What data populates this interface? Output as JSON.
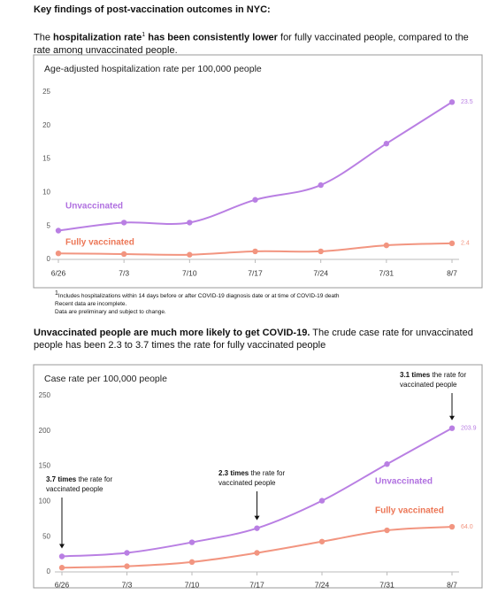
{
  "header": {
    "title": "Key findings of post-vaccination outcomes in NYC:"
  },
  "section1": {
    "parts": [
      "The ",
      "hospitalization rate",
      "1",
      " has been consistently lower",
      " for fully vaccinated people, compared to the rate among unvaccinated people."
    ]
  },
  "chart_data": [
    {
      "type": "line",
      "title": "Age-adjusted hospitalization rate per 100,000 people",
      "categories": [
        "6/26",
        "7/3",
        "7/10",
        "7/17",
        "7/24",
        "7/31",
        "8/7"
      ],
      "ylim": [
        0,
        25
      ],
      "yticks": [
        0,
        5,
        10,
        15,
        20,
        25
      ],
      "grid": false,
      "series": [
        {
          "name": "Unvaccinated",
          "color": "#b97fe3",
          "values": [
            4.3,
            5.5,
            5.5,
            8.9,
            11.1,
            17.3,
            23.5
          ],
          "value_labels": [
            null,
            null,
            null,
            null,
            null,
            null,
            "23.5"
          ]
        },
        {
          "name": "Fully vaccinated",
          "color": "#f29580",
          "values": [
            0.9,
            0.8,
            0.7,
            1.2,
            1.2,
            2.1,
            2.4
          ],
          "value_labels": [
            null,
            null,
            null,
            null,
            null,
            null,
            "2.4"
          ]
        }
      ]
    },
    {
      "type": "line",
      "title": "Case rate per 100,000 people",
      "categories": [
        "6/26",
        "7/3",
        "7/10",
        "7/17",
        "7/24",
        "7/31",
        "8/7"
      ],
      "ylim": [
        0,
        250
      ],
      "yticks": [
        0,
        50,
        100,
        150,
        200,
        250
      ],
      "grid": false,
      "series": [
        {
          "name": "Unvaccinated",
          "color": "#b97fe3",
          "values": [
            22,
            27,
            42,
            62,
            101,
            153,
            203.9
          ],
          "value_labels": [
            null,
            null,
            null,
            null,
            null,
            null,
            "203.9"
          ]
        },
        {
          "name": "Fully vaccinated",
          "color": "#f29580",
          "values": [
            6,
            8,
            14,
            27,
            43,
            59,
            64.0
          ],
          "value_labels": [
            null,
            null,
            null,
            null,
            null,
            null,
            "64.0"
          ]
        }
      ],
      "annotations": [
        {
          "bold": "3.7 times",
          "lines": [
            "the rate for",
            "vaccinated people"
          ]
        },
        {
          "bold": "2.3 times",
          "lines": [
            "the rate for",
            "vaccinated people"
          ]
        },
        {
          "bold": "3.1 times",
          "lines": [
            "the rate for",
            "vaccinated people"
          ]
        }
      ]
    }
  ],
  "footnote": {
    "lines": [
      "Includes hospitalizations within 14 days before or after COVID-19 diagnosis date or at time of COVID-19 death",
      "Recent data are incomplete.",
      "Data are preliminary and subject to change."
    ],
    "mark": "1"
  },
  "section2": {
    "parts": [
      "Unvaccinated people are much more likely to get COVID-19.",
      " The crude case rate for unvaccinated people has been 2.3 to 3.7 times the rate for fully vaccinated people"
    ]
  }
}
